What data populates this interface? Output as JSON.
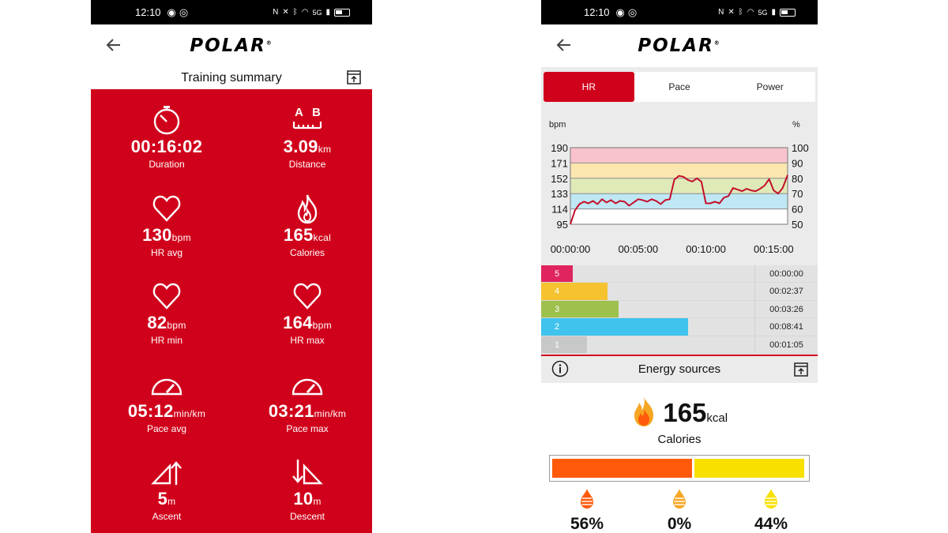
{
  "status_bar": {
    "time": "12:10",
    "network": "5G",
    "signal_bars": "4G"
  },
  "brand": {
    "name": "POLAR",
    "accent": "#d0021b"
  },
  "training_summary": {
    "title": "Training summary",
    "metrics": [
      {
        "icon": "stopwatch-icon",
        "value": "00:16:02",
        "unit": "",
        "label": "Duration"
      },
      {
        "icon": "distance-ab-icon",
        "value": "3.09",
        "unit": "km",
        "label": "Distance"
      },
      {
        "icon": "heart-icon",
        "value": "130",
        "unit": "bpm",
        "label": "HR avg"
      },
      {
        "icon": "flame-icon",
        "value": "165",
        "unit": "kcal",
        "label": "Calories"
      },
      {
        "icon": "heart-icon",
        "value": "82",
        "unit": "bpm",
        "label": "HR min"
      },
      {
        "icon": "heart-icon",
        "value": "164",
        "unit": "bpm",
        "label": "HR max"
      },
      {
        "icon": "gauge-icon",
        "value": "05:12",
        "unit": "min/km",
        "label": "Pace avg"
      },
      {
        "icon": "gauge-icon",
        "value": "03:21",
        "unit": "min/km",
        "label": "Pace max"
      },
      {
        "icon": "ascent-icon",
        "value": "5",
        "unit": "m",
        "label": "Ascent"
      },
      {
        "icon": "descent-icon",
        "value": "10",
        "unit": "m",
        "label": "Descent"
      }
    ]
  },
  "chart_tabs": [
    {
      "label": "HR",
      "active": true
    },
    {
      "label": "Pace",
      "active": false
    },
    {
      "label": "Power",
      "active": false
    }
  ],
  "chart_data": {
    "type": "line",
    "xlabel": "",
    "ylabel": "bpm",
    "y2label": "%",
    "ylim": [
      95,
      190
    ],
    "yticks": [
      "190",
      "171",
      "152",
      "133",
      "114",
      "95"
    ],
    "y2ticks": [
      "100",
      "90",
      "80",
      "70",
      "60",
      "50"
    ],
    "xticks": [
      "00:00:00",
      "00:05:00",
      "00:10:00",
      "00:15:00"
    ],
    "xlim_seconds": [
      0,
      962
    ],
    "zone_bands": [
      {
        "zone": 5,
        "from": 171,
        "to": 190,
        "color": "#f8c3cc"
      },
      {
        "zone": 4,
        "from": 152,
        "to": 171,
        "color": "#fbe6b0"
      },
      {
        "zone": 3,
        "from": 133,
        "to": 152,
        "color": "#dfeab8"
      },
      {
        "zone": 2,
        "from": 114,
        "to": 133,
        "color": "#bfe7f4"
      },
      {
        "zone": 1,
        "from": 95,
        "to": 114,
        "color": "#ffffff"
      }
    ],
    "series": [
      {
        "name": "",
        "color": "#c40f2a",
        "x": [
          0,
          20,
          40,
          60,
          80,
          100,
          120,
          140,
          160,
          180,
          200,
          220,
          240,
          260,
          280,
          300,
          320,
          340,
          360,
          380,
          400,
          420,
          440,
          460,
          480,
          500,
          520,
          540,
          560,
          580,
          600,
          620,
          640,
          660,
          680,
          700,
          720,
          740,
          760,
          780,
          800,
          820,
          840,
          860,
          880,
          900,
          920,
          940,
          962
        ],
        "values": [
          95,
          112,
          120,
          123,
          121,
          124,
          120,
          126,
          122,
          125,
          121,
          124,
          123,
          118,
          122,
          126,
          125,
          123,
          126,
          124,
          120,
          125,
          126,
          150,
          155,
          154,
          150,
          148,
          152,
          148,
          121,
          121,
          123,
          121,
          128,
          130,
          140,
          138,
          136,
          139,
          137,
          136,
          139,
          143,
          151,
          137,
          133,
          140,
          156
        ]
      }
    ],
    "grid": true
  },
  "zones": [
    {
      "zone": "5",
      "duration": "00:00:00",
      "fraction": 0.0,
      "color": "#e0245e"
    },
    {
      "zone": "4",
      "duration": "00:02:37",
      "fraction": 0.163,
      "color": "#f5c330"
    },
    {
      "zone": "3",
      "duration": "00:03:26",
      "fraction": 0.214,
      "color": "#9ec04c"
    },
    {
      "zone": "2",
      "duration": "00:08:41",
      "fraction": 0.541,
      "color": "#3fc3ec"
    },
    {
      "zone": "1",
      "duration": "00:01:05",
      "fraction": 0.068,
      "color": "#c8c8c8"
    }
  ],
  "energy": {
    "title": "Energy sources",
    "calories_value": "165",
    "calories_unit": "kcal",
    "calories_label": "Calories",
    "sources": [
      {
        "icon": "carbohydrate-drop-icon",
        "percent": "56%",
        "fraction": 0.56,
        "color": "#ff5a0a"
      },
      {
        "icon": "protein-drop-icon",
        "percent": "0%",
        "fraction": 0.0,
        "color": "#f5a623"
      },
      {
        "icon": "fat-drop-icon",
        "percent": "44%",
        "fraction": 0.44,
        "color": "#f8e000"
      }
    ]
  }
}
